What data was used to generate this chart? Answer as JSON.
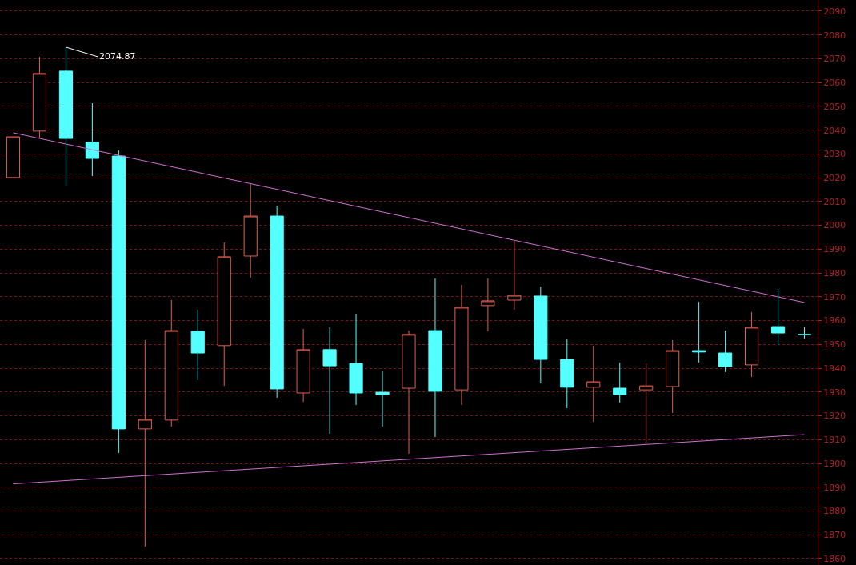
{
  "chart_data": {
    "type": "candlestick",
    "categories": [
      null,
      null,
      null,
      null,
      null,
      null,
      null,
      null,
      null,
      null,
      null,
      null,
      null,
      null,
      null,
      null,
      null,
      null,
      null,
      null,
      null,
      null,
      null,
      null,
      null,
      null,
      null,
      null,
      null,
      null,
      null
    ],
    "ohlc": [
      [
        2020.1,
        2037.2,
        2020.1,
        2037.2
      ],
      [
        2039.6,
        2070.8,
        2036.7,
        2063.8
      ],
      [
        2064.8,
        2074.87,
        2016.7,
        2036.5
      ],
      [
        2035.0,
        2051.3,
        2020.7,
        2028.1
      ],
      [
        2029.1,
        2031.5,
        1904.4,
        1914.5
      ],
      [
        1914.5,
        1951.8,
        1865.0,
        1918.5
      ],
      [
        1918.2,
        1968.6,
        1915.5,
        1955.8
      ],
      [
        1955.5,
        1964.6,
        1935.0,
        1946.4
      ],
      [
        1949.5,
        1992.8,
        1932.6,
        1986.8
      ],
      [
        1987.1,
        2017.4,
        1978.0,
        2003.9
      ],
      [
        2003.9,
        2008.3,
        1927.6,
        1931.3
      ],
      [
        1929.6,
        1956.5,
        1925.9,
        1947.8
      ],
      [
        1947.8,
        1957.2,
        1912.5,
        1941.0
      ],
      [
        1942.0,
        1962.9,
        1924.6,
        1929.6
      ],
      [
        1929.9,
        1938.7,
        1915.5,
        1928.9
      ],
      [
        1931.6,
        1955.8,
        1904.1,
        1954.2
      ],
      [
        1955.8,
        1977.7,
        1911.1,
        1930.3
      ],
      [
        1930.9,
        1975.0,
        1924.6,
        1965.6
      ],
      [
        1966.3,
        1977.7,
        1955.5,
        1968.3
      ],
      [
        1968.6,
        1993.5,
        1964.6,
        1970.6
      ],
      [
        1970.3,
        1974.3,
        1933.6,
        1943.7
      ],
      [
        1943.7,
        1952.1,
        1923.2,
        1932.0
      ],
      [
        1932.0,
        1949.5,
        1917.5,
        1934.3
      ],
      [
        1931.6,
        1942.4,
        1925.6,
        1928.9
      ],
      [
        1930.9,
        1942.0,
        1908.8,
        1932.6
      ],
      [
        1932.3,
        1951.8,
        1921.2,
        1947.4
      ],
      [
        1947.4,
        1967.9,
        1942.4,
        1946.8
      ],
      [
        1946.4,
        1955.8,
        1938.4,
        1940.7
      ],
      [
        1941.4,
        1963.6,
        1936.3,
        1957.2
      ],
      [
        1957.5,
        1973.3,
        1949.5,
        1954.8
      ],
      [
        1954.2,
        1957.2,
        1952.5,
        1954.0
      ]
    ],
    "colors": [
      "#e06050",
      "#e06050",
      "#54ffff",
      "#54ffff",
      "#54ffff",
      "#e06050",
      "#e06050",
      "#54ffff",
      "#e06050",
      "#e06050",
      "#54ffff",
      "#e06050",
      "#54ffff",
      "#54ffff",
      "#54ffff",
      "#e06050",
      "#54ffff",
      "#e06050",
      "#e06050",
      "#e06050",
      "#54ffff",
      "#54ffff",
      "#e06050",
      "#54ffff",
      "#e06050",
      "#e06050",
      "#54ffff",
      "#54ffff",
      "#e06050",
      "#54ffff",
      "#54ffff"
    ],
    "series": [
      {
        "type": "line",
        "color": "#d070d0",
        "values": [
          2038.9,
          null,
          null,
          null,
          null,
          null,
          null,
          null,
          null,
          null,
          null,
          null,
          null,
          null,
          null,
          null,
          null,
          null,
          null,
          null,
          null,
          null,
          null,
          null,
          null,
          null,
          null,
          null,
          null,
          null,
          1967.6
        ]
      },
      {
        "type": "line",
        "color": "#d070d0",
        "values": [
          1891.4,
          null,
          null,
          null,
          null,
          null,
          null,
          null,
          null,
          null,
          null,
          null,
          null,
          null,
          null,
          null,
          null,
          null,
          null,
          null,
          null,
          null,
          null,
          null,
          null,
          null,
          null,
          null,
          null,
          null,
          1912.1
        ]
      }
    ],
    "ylim": [
      1857.3,
      2094.7
    ],
    "yticks": [
      1860,
      1870,
      1880,
      1890,
      1900,
      1910,
      1920,
      1930,
      1940,
      1950,
      1960,
      1970,
      1980,
      1990,
      2000,
      2010,
      2020,
      2030,
      2040,
      2050,
      2060,
      2070,
      2080,
      2090
    ],
    "grid": "y",
    "tick_labels": "y",
    "annotations": [
      "2074.87"
    ]
  }
}
